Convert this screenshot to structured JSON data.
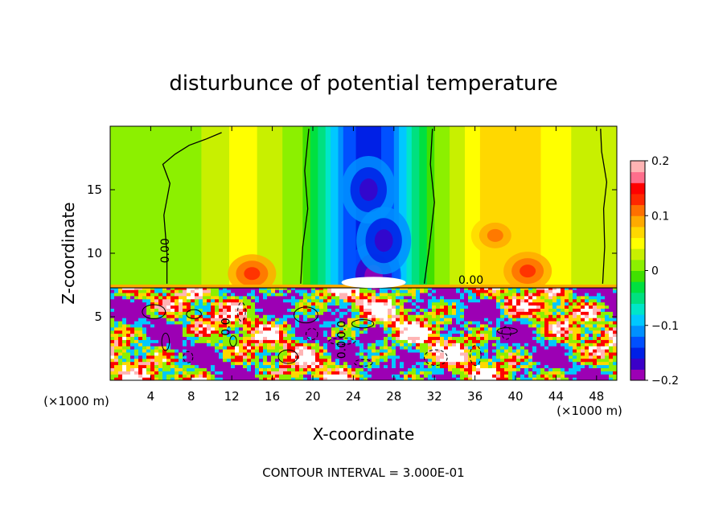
{
  "chart_data": {
    "type": "heatmap",
    "title": "disturbunce of potential temperature",
    "xlabel": "X-coordinate",
    "ylabel": "Z-coordinate",
    "x_unit": "(×1000 m)",
    "z_unit": "(×1000 m)",
    "footer": "CONTOUR INTERVAL = 3.000E-01",
    "xlim": [
      0,
      50
    ],
    "ylim": [
      0,
      20
    ],
    "xticks": [
      4,
      8,
      12,
      16,
      20,
      24,
      28,
      32,
      36,
      40,
      44,
      48
    ],
    "yticks": [
      5,
      10,
      15
    ],
    "colorbar": {
      "range": [
        -0.2,
        0.2
      ],
      "ticks": [
        0.2,
        0.1,
        0,
        -0.1,
        -0.2
      ],
      "tick_labels": [
        "0.2",
        "0.1",
        "0",
        "−0.1",
        "−0.2"
      ]
    },
    "contour_labels": [
      "0.00",
      "0.00",
      "0.0",
      "0.0",
      "0.0"
    ],
    "inversion_height": 7.4,
    "upper_field": [
      {
        "x": 0,
        "v": 0.0
      },
      {
        "x": 3,
        "v": 0.01
      },
      {
        "x": 6,
        "v": 0.0
      },
      {
        "x": 9,
        "v": 0.02
      },
      {
        "x": 13,
        "v": 0.05
      },
      {
        "x": 16,
        "v": 0.03
      },
      {
        "x": 19,
        "v": 0.0
      },
      {
        "x": 21,
        "v": -0.05
      },
      {
        "x": 23,
        "v": -0.12
      },
      {
        "x": 25.5,
        "v": -0.16
      },
      {
        "x": 28,
        "v": -0.12
      },
      {
        "x": 30,
        "v": -0.05
      },
      {
        "x": 32,
        "v": 0.0
      },
      {
        "x": 35,
        "v": 0.04
      },
      {
        "x": 38,
        "v": 0.08
      },
      {
        "x": 41,
        "v": 0.07
      },
      {
        "x": 44,
        "v": 0.05
      },
      {
        "x": 47,
        "v": 0.03
      },
      {
        "x": 50,
        "v": 0.02
      }
    ],
    "upper_anomalies": [
      {
        "x": 14,
        "z": 8.4,
        "v": 0.13
      },
      {
        "x": 38,
        "z": 11.4,
        "v": 0.1
      },
      {
        "x": 41.2,
        "z": 8.6,
        "v": 0.13
      },
      {
        "x": 26,
        "z": 8.2,
        "v": -0.2
      },
      {
        "x": 25.5,
        "z": 15.0,
        "v": -0.18
      },
      {
        "x": 27,
        "z": 11.0,
        "v": -0.17
      }
    ]
  },
  "colors": {
    "scale": [
      "#9c00b4",
      "#3b00c8",
      "#0020e6",
      "#0050ff",
      "#0090ff",
      "#00c8ff",
      "#00e6c8",
      "#00e080",
      "#00e040",
      "#40e000",
      "#8cf000",
      "#c8f000",
      "#ffff00",
      "#ffd800",
      "#ffaa00",
      "#ff7000",
      "#ff2800",
      "#ff0000",
      "#ff6e8c",
      "#ffb4b4"
    ],
    "frame": "#000000",
    "contour": "#000000"
  }
}
